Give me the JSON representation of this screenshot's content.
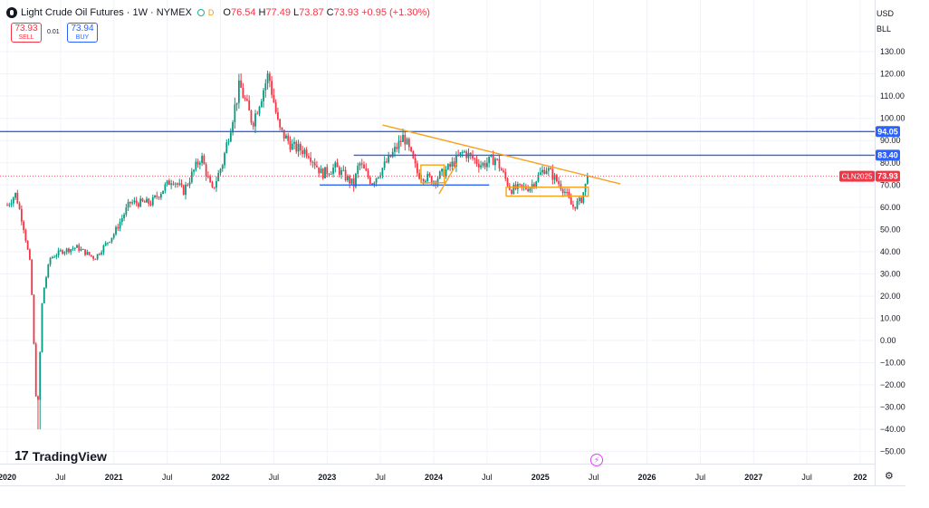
{
  "header": {
    "title": "Light Crude Oil Futures · 1W · NYMEX",
    "badge": "D",
    "open_label": "O",
    "open": "76.54",
    "high_label": "H",
    "high": "77.49",
    "low_label": "L",
    "low": "73.87",
    "close_label": "C",
    "close": "73.93",
    "change": "+0.95 (+1.30%)"
  },
  "trade": {
    "sell_price": "73.93",
    "sell_label": "SELL",
    "spread": "0.01",
    "buy_price": "73.94",
    "buy_label": "BUY"
  },
  "currency": "USD",
  "unit": "BLL",
  "brand": "TradingView",
  "colors": {
    "up": "#089981",
    "down": "#f23645",
    "support": "#2962ff",
    "trend": "#f7a21b",
    "text": "#131722"
  },
  "chart_data": {
    "type": "candlestick",
    "symbol_label": "CLN2025",
    "last_price": "73.93",
    "y_ticks": [
      "130.00",
      "120.00",
      "110.00",
      "100.00",
      "90.00",
      "80.00",
      "70.00",
      "60.00",
      "50.00",
      "40.00",
      "30.00",
      "20.00",
      "10.00",
      "0.00",
      "−10.00",
      "−20.00",
      "−30.00",
      "−40.00",
      "−50.00"
    ],
    "ylim": [
      -55,
      135
    ],
    "x_ticks": [
      {
        "label": "2020",
        "t": 2020.0
      },
      {
        "label": "Jul",
        "t": 2020.5
      },
      {
        "label": "2021",
        "t": 2021.0
      },
      {
        "label": "Jul",
        "t": 2021.5
      },
      {
        "label": "2022",
        "t": 2022.0
      },
      {
        "label": "Jul",
        "t": 2022.5
      },
      {
        "label": "2023",
        "t": 2023.0
      },
      {
        "label": "Jul",
        "t": 2023.5
      },
      {
        "label": "2024",
        "t": 2024.0
      },
      {
        "label": "Jul",
        "t": 2024.5
      },
      {
        "label": "2025",
        "t": 2025.0
      },
      {
        "label": "Jul",
        "t": 2025.5
      },
      {
        "label": "2026",
        "t": 2026.0
      },
      {
        "label": "Jul",
        "t": 2026.5
      },
      {
        "label": "2027",
        "t": 2027.0
      },
      {
        "label": "Jul",
        "t": 2027.5
      },
      {
        "label": "202",
        "t": 2028.0
      }
    ],
    "xlim": [
      2020.0,
      2028.0
    ],
    "price_lines": [
      {
        "value": 94.05,
        "label": "94.05"
      },
      {
        "value": 83.4,
        "label": "83.40",
        "t_start": 2023.25
      }
    ],
    "support_segments": [
      {
        "t1": 2022.93,
        "t2": 2024.52,
        "value": 70
      }
    ],
    "trend_lines": [
      {
        "t1": 2023.52,
        "v1": 97,
        "t2": 2025.75,
        "v2": 70.5
      },
      {
        "t1": 2024.05,
        "v1": 66,
        "t2": 2024.22,
        "v2": 80
      }
    ],
    "range_boxes": [
      {
        "t1": 2023.88,
        "t2": 2024.1,
        "v_low": 71,
        "v_high": 79
      },
      {
        "t1": 2024.68,
        "t2": 2025.45,
        "v_low": 65,
        "v_high": 69
      }
    ],
    "anchors": [
      {
        "t": 2020.0,
        "v": 61
      },
      {
        "t": 2020.08,
        "v": 66
      },
      {
        "t": 2020.15,
        "v": 52
      },
      {
        "t": 2020.22,
        "v": 33
      },
      {
        "t": 2020.28,
        "v": -37
      },
      {
        "t": 2020.33,
        "v": 20
      },
      {
        "t": 2020.4,
        "v": 37
      },
      {
        "t": 2020.5,
        "v": 40
      },
      {
        "t": 2020.65,
        "v": 42
      },
      {
        "t": 2020.82,
        "v": 37
      },
      {
        "t": 2021.0,
        "v": 48
      },
      {
        "t": 2021.15,
        "v": 62
      },
      {
        "t": 2021.35,
        "v": 62
      },
      {
        "t": 2021.55,
        "v": 73
      },
      {
        "t": 2021.65,
        "v": 67
      },
      {
        "t": 2021.82,
        "v": 83
      },
      {
        "t": 2021.92,
        "v": 67
      },
      {
        "t": 2022.02,
        "v": 80
      },
      {
        "t": 2022.18,
        "v": 115
      },
      {
        "t": 2022.3,
        "v": 98
      },
      {
        "t": 2022.45,
        "v": 120
      },
      {
        "t": 2022.55,
        "v": 95
      },
      {
        "t": 2022.68,
        "v": 87
      },
      {
        "t": 2022.82,
        "v": 85
      },
      {
        "t": 2022.95,
        "v": 75
      },
      {
        "t": 2023.08,
        "v": 78
      },
      {
        "t": 2023.25,
        "v": 70
      },
      {
        "t": 2023.3,
        "v": 80
      },
      {
        "t": 2023.42,
        "v": 71
      },
      {
        "t": 2023.6,
        "v": 83
      },
      {
        "t": 2023.72,
        "v": 92
      },
      {
        "t": 2023.85,
        "v": 75
      },
      {
        "t": 2024.0,
        "v": 72
      },
      {
        "t": 2024.15,
        "v": 78
      },
      {
        "t": 2024.28,
        "v": 85
      },
      {
        "t": 2024.45,
        "v": 79
      },
      {
        "t": 2024.58,
        "v": 82
      },
      {
        "t": 2024.72,
        "v": 68
      },
      {
        "t": 2024.9,
        "v": 69
      },
      {
        "t": 2025.05,
        "v": 78
      },
      {
        "t": 2025.22,
        "v": 68
      },
      {
        "t": 2025.3,
        "v": 60
      },
      {
        "t": 2025.38,
        "v": 63
      },
      {
        "t": 2025.45,
        "v": 73.93
      }
    ]
  }
}
